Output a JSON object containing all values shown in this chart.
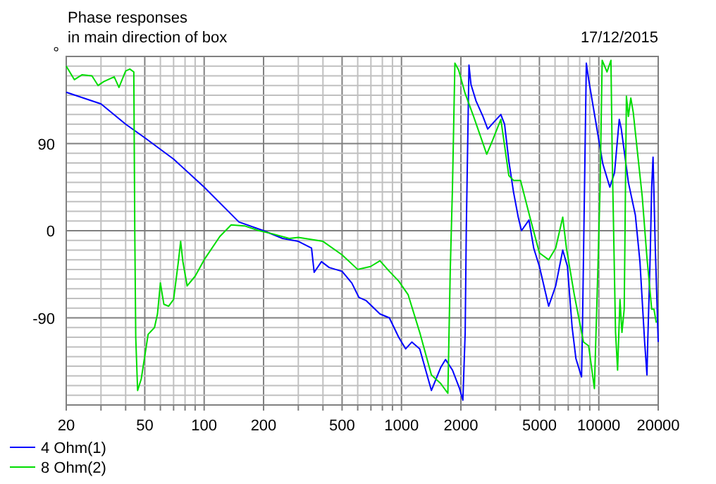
{
  "chart_data": {
    "type": "line",
    "title": "Phase responses",
    "subtitle": "in main direction of box",
    "annotations": [
      "17/12/2015"
    ],
    "ylabel": "°",
    "log": "x",
    "grid": true,
    "legend": "bottom left",
    "line_style": "solid",
    "marker": "none",
    "xlim": [
      20,
      20000
    ],
    "ylim": [
      -180,
      180
    ],
    "xticks": [
      20,
      {
        "value": 30,
        "label": null
      },
      {
        "value": 40,
        "label": null
      },
      50,
      {
        "value": 60,
        "label": null
      },
      {
        "value": 70,
        "label": null
      },
      {
        "value": 80,
        "label": null
      },
      {
        "value": 90,
        "label": null
      },
      100,
      200,
      {
        "value": 300,
        "label": null
      },
      {
        "value": 400,
        "label": null
      },
      500,
      {
        "value": 600,
        "label": null
      },
      {
        "value": 700,
        "label": null
      },
      {
        "value": 800,
        "label": null
      },
      {
        "value": 900,
        "label": null
      },
      1000,
      2000,
      {
        "value": 3000,
        "label": null
      },
      {
        "value": 4000,
        "label": null
      },
      5000,
      {
        "value": 6000,
        "label": null
      },
      {
        "value": 7000,
        "label": null
      },
      {
        "value": 8000,
        "label": null
      },
      {
        "value": 9000,
        "label": null
      },
      10000,
      20000
    ],
    "yticks": [
      {
        "value": -170,
        "label": null
      },
      {
        "value": -160,
        "label": null
      },
      {
        "value": -150,
        "label": null
      },
      {
        "value": -140,
        "label": null
      },
      {
        "value": -130,
        "label": null
      },
      {
        "value": -120,
        "label": null
      },
      {
        "value": -110,
        "label": null
      },
      {
        "value": -100,
        "label": null
      },
      -90,
      {
        "value": -80,
        "label": null
      },
      {
        "value": -70,
        "label": null
      },
      {
        "value": -60,
        "label": null
      },
      {
        "value": -50,
        "label": null
      },
      {
        "value": -40,
        "label": null
      },
      {
        "value": -30,
        "label": null
      },
      {
        "value": -20,
        "label": null
      },
      {
        "value": -10,
        "label": null
      },
      0,
      {
        "value": 10,
        "label": null
      },
      {
        "value": 20,
        "label": null
      },
      {
        "value": 30,
        "label": null
      },
      {
        "value": 40,
        "label": null
      },
      {
        "value": 50,
        "label": null
      },
      {
        "value": 60,
        "label": null
      },
      {
        "value": 70,
        "label": null
      },
      {
        "value": 80,
        "label": null
      },
      90,
      {
        "value": 100,
        "label": null
      },
      {
        "value": 110,
        "label": null
      },
      {
        "value": 120,
        "label": null
      },
      {
        "value": 130,
        "label": null
      },
      {
        "value": 140,
        "label": null
      },
      {
        "value": 150,
        "label": null
      },
      {
        "value": 160,
        "label": null
      },
      {
        "value": 170,
        "label": null
      }
    ],
    "series": [
      {
        "name": "4 Ohm(1)",
        "color": "#0000ff",
        "x": [
          20,
          30,
          40,
          50,
          70,
          100,
          150,
          200,
          250,
          300,
          350,
          361,
          393,
          430,
          500,
          560,
          609,
          660,
          778,
          868,
          968,
          1050,
          1128,
          1237,
          1418,
          1583,
          1672,
          1813,
          1969,
          2047,
          2103,
          2130,
          2198,
          2250,
          2387,
          2588,
          2735,
          2965,
          3188,
          3330,
          3499,
          3696,
          3905,
          4055,
          4425,
          4679,
          5000,
          5570,
          6045,
          6565,
          6935,
          7326,
          7654,
          8175,
          8270,
          8645,
          8884,
          9387,
          9918,
          10480,
          11370,
          12015,
          12695,
          13000,
          14120,
          15320,
          16160,
          17070,
          17540,
          17700,
          18230,
          18530,
          18830,
          19330,
          20000
        ],
        "values": [
          143,
          131,
          110,
          96,
          74,
          45,
          9,
          0,
          -8,
          -11,
          -18,
          -43,
          -32,
          -38,
          -42,
          -54,
          -69,
          -72,
          -86,
          -90,
          -110,
          -122,
          -115,
          -122,
          -165,
          -141,
          -133,
          -144,
          -163,
          -175,
          -105,
          1,
          171,
          151,
          134,
          118,
          105,
          113,
          120,
          110,
          72,
          40,
          14,
          0,
          11,
          -18,
          -37,
          -78,
          -57,
          -20,
          -37,
          -100,
          -132,
          -151,
          -95,
          173,
          156,
          127,
          98,
          69,
          45,
          60,
          115,
          105,
          50,
          16,
          -32,
          -115,
          -149,
          -115,
          -23,
          45,
          76,
          -18,
          -115
        ]
      },
      {
        "name": "8 Ohm(2)",
        "color": "#00dd00",
        "x": [
          20,
          22,
          24,
          27,
          29,
          31,
          35,
          37,
          40,
          42,
          44,
          44.5,
          45,
          46,
          48,
          52,
          56,
          58,
          60,
          62.5,
          66,
          70,
          74,
          76,
          78,
          82,
          90,
          100,
          120,
          137,
          160,
          190,
          220,
          270,
          300,
          400,
          500,
          600,
          697,
          778,
          868,
          968,
          1080,
          1237,
          1418,
          1583,
          1718,
          1766,
          1813,
          1865,
          1948,
          2100,
          2320,
          2704,
          2890,
          3188,
          3499,
          3696,
          4011,
          4475,
          5000,
          5570,
          6045,
          6565,
          6852,
          7510,
          8362,
          8884,
          9497,
          9900,
          10150,
          10400,
          11000,
          11520,
          11700,
          12156,
          12450,
          12800,
          13100,
          13450,
          13800,
          14120,
          14530,
          14950,
          15740,
          16600,
          17540,
          18530,
          19030,
          19550
        ],
        "values": [
          170,
          156,
          161,
          160,
          150,
          154,
          159,
          148,
          165,
          167,
          164,
          0,
          -110,
          -165,
          -153,
          -107,
          -100,
          -86,
          -54,
          -76,
          -78,
          -71,
          -32,
          -11,
          -32,
          -57,
          -47,
          -30,
          -6,
          6,
          5,
          0,
          -3,
          -8,
          -7,
          -11,
          -25,
          -40,
          -37,
          -31,
          -42,
          -52,
          -66,
          -105,
          -149,
          -158,
          -168,
          -42,
          45,
          173,
          166,
          142,
          118,
          79,
          93,
          115,
          57,
          52,
          52,
          14,
          -23,
          -30,
          -18,
          14,
          -18,
          -66,
          -115,
          -119,
          -163,
          -37,
          45,
          176,
          164,
          176,
          74,
          -105,
          -144,
          -71,
          -105,
          -81,
          139,
          118,
          137,
          122,
          79,
          35,
          -28,
          -81,
          -81,
          -95
        ]
      }
    ]
  }
}
